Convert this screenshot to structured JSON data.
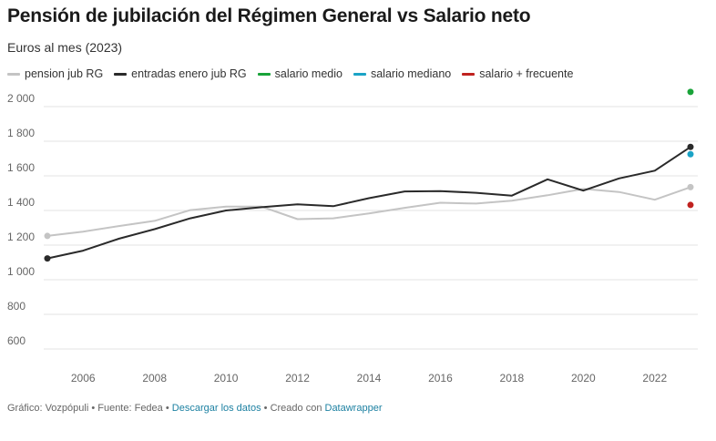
{
  "header": {
    "title": "Pensión de jubilación del Régimen General vs Salario neto",
    "subtitle": "Euros al mes (2023)"
  },
  "colors": {
    "pension": "#c4c4c4",
    "entradas": "#2a2a2a",
    "medio": "#19a339",
    "mediano": "#1ba3c6",
    "frecuente": "#c0221f",
    "grid": "#e3e3e3"
  },
  "legend": [
    {
      "label": "pension jub RG",
      "color": "#c4c4c4",
      "kind": "line"
    },
    {
      "label": "entradas enero jub RG",
      "color": "#2a2a2a",
      "kind": "line"
    },
    {
      "label": "salario medio",
      "color": "#19a339",
      "kind": "dot"
    },
    {
      "label": "salario mediano",
      "color": "#1ba3c6",
      "kind": "dot"
    },
    {
      "label": "salario + frecuente",
      "color": "#c0221f",
      "kind": "dot"
    }
  ],
  "chart_data": {
    "type": "line",
    "title": "Pensión de jubilación del Régimen General vs Salario neto",
    "subtitle": "Euros al mes (2023)",
    "ylim": [
      600,
      2100
    ],
    "xlim": [
      2005,
      2023
    ],
    "yticks": [
      600,
      800,
      1000,
      1200,
      1400,
      1600,
      1800,
      2000
    ],
    "ytick_labels": [
      "600",
      "800",
      "1 000",
      "1 200",
      "1 400",
      "1 600",
      "1 800",
      "2 000"
    ],
    "xticks": [
      2006,
      2008,
      2010,
      2012,
      2014,
      2016,
      2018,
      2020,
      2022
    ],
    "xtick_labels": [
      "2006",
      "2008",
      "2010",
      "2012",
      "2014",
      "2016",
      "2018",
      "2020",
      "2022"
    ],
    "grid": true,
    "legend_position": "top-left",
    "x": [
      2005,
      2006,
      2007,
      2008,
      2009,
      2010,
      2011,
      2012,
      2013,
      2014,
      2015,
      2016,
      2017,
      2018,
      2019,
      2020,
      2021,
      2022,
      2023
    ],
    "series": [
      {
        "name": "pension jub RG",
        "color": "#c4c4c4",
        "values": [
          1253,
          1278,
          1310,
          1340,
          1402,
          1422,
          1422,
          1350,
          1355,
          1383,
          1415,
          1445,
          1440,
          1457,
          1488,
          1525,
          1507,
          1462,
          1535
        ]
      },
      {
        "name": "entradas enero jub RG",
        "color": "#2a2a2a",
        "values": [
          1123,
          1168,
          1237,
          1292,
          1355,
          1400,
          1419,
          1436,
          1425,
          1471,
          1510,
          1512,
          1502,
          1486,
          1580,
          1515,
          1585,
          1630,
          1767
        ]
      }
    ],
    "points": [
      {
        "name": "salario medio",
        "x": 2023,
        "y": 2085,
        "color": "#19a339"
      },
      {
        "name": "salario mediano",
        "x": 2023,
        "y": 1725,
        "color": "#1ba3c6"
      },
      {
        "name": "salario + frecuente",
        "x": 2023,
        "y": 1432,
        "color": "#c0221f"
      }
    ]
  },
  "footer": {
    "prefix": "Gráfico: Vozpópuli • Fuente: Fedea •",
    "download": "Descargar los datos",
    "middle": "• Creado con",
    "tool": "Datawrapper"
  }
}
